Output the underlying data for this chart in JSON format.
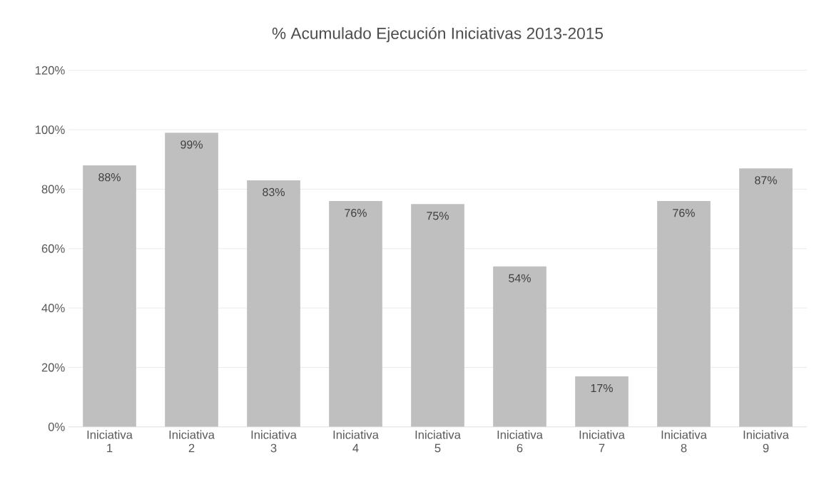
{
  "chart_data": {
    "type": "bar",
    "title": "% Acumulado Ejecución Iniciativas 2013-2015",
    "categories": [
      "Iniciativa 1",
      "Iniciativa 2",
      "Iniciativa 3",
      "Iniciativa 4",
      "Iniciativa 5",
      "Iniciativa 6",
      "Iniciativa 7",
      "Iniciativa 8",
      "Iniciativa 9"
    ],
    "values": [
      88,
      99,
      83,
      76,
      75,
      54,
      17,
      76,
      87
    ],
    "value_labels": [
      "88%",
      "99%",
      "83%",
      "76%",
      "75%",
      "54%",
      "17%",
      "76%",
      "87%"
    ],
    "color": "#bfbfbf",
    "ylim": [
      0,
      120
    ],
    "yticks": [
      {
        "value": 0,
        "label": "0%"
      },
      {
        "value": 20,
        "label": "20%"
      },
      {
        "value": 40,
        "label": "40%"
      },
      {
        "value": 60,
        "label": "60%"
      },
      {
        "value": 80,
        "label": "80%"
      },
      {
        "value": 100,
        "label": "100%"
      },
      {
        "value": 120,
        "label": "120%"
      }
    ],
    "grid": "y"
  }
}
